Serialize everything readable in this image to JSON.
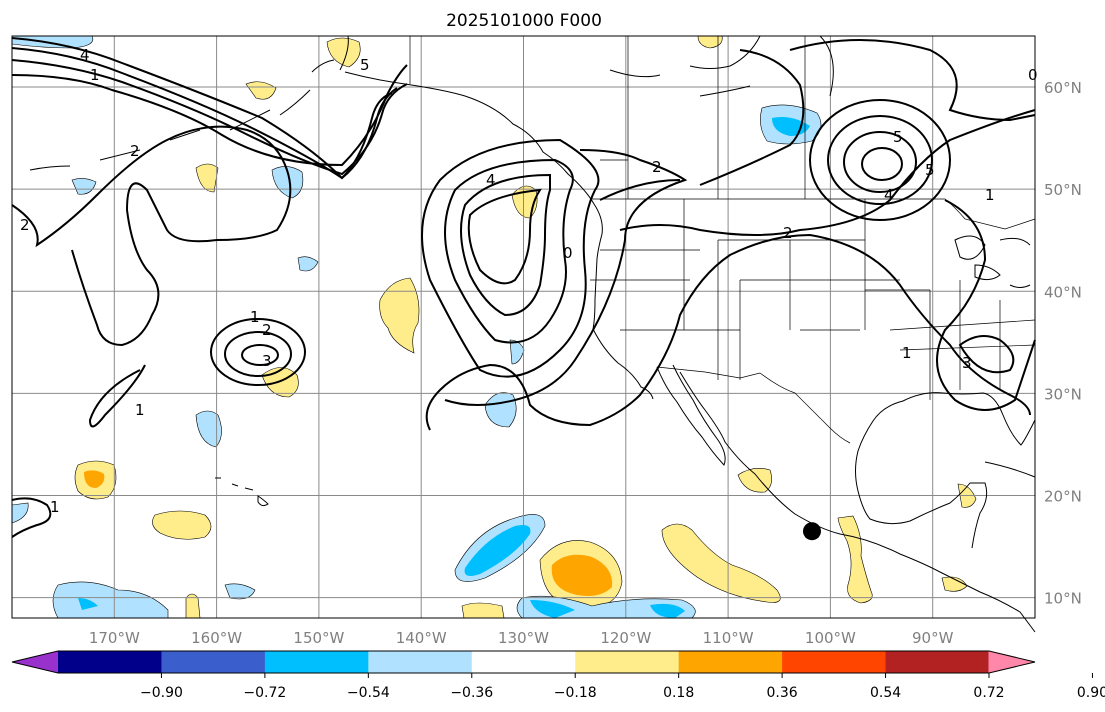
{
  "title": "2025101000 F000",
  "map": {
    "extent_lon": [
      -180,
      -80
    ],
    "extent_lat": [
      8,
      65
    ],
    "lon_ticks": [
      {
        "value": -170,
        "label": "170°W"
      },
      {
        "value": -160,
        "label": "160°W"
      },
      {
        "value": -150,
        "label": "150°W"
      },
      {
        "value": -140,
        "label": "140°W"
      },
      {
        "value": -130,
        "label": "130°W"
      },
      {
        "value": -120,
        "label": "120°W"
      },
      {
        "value": -110,
        "label": "110°W"
      },
      {
        "value": -100,
        "label": "100°W"
      },
      {
        "value": -90,
        "label": "90°W"
      }
    ],
    "lat_ticks": [
      {
        "value": 60,
        "label": "60°N"
      },
      {
        "value": 50,
        "label": "50°N"
      },
      {
        "value": 40,
        "label": "40°N"
      },
      {
        "value": 30,
        "label": "30°N"
      },
      {
        "value": 20,
        "label": "20°N"
      },
      {
        "value": 10,
        "label": "10°N"
      }
    ],
    "contour_labels": [
      "1",
      "2",
      "4",
      "5",
      "2",
      "1",
      "2",
      "3",
      "1",
      "4",
      "0",
      "2",
      "2",
      "5",
      "5",
      "4",
      "1",
      "3",
      "1",
      "0",
      "1"
    ],
    "marker": {
      "lon": -101.8,
      "lat": 16.5
    }
  },
  "colorbar": {
    "levels": [
      "−0.90",
      "−0.72",
      "−0.54",
      "−0.36",
      "−0.18",
      "0.18",
      "0.36",
      "0.54",
      "0.72",
      "0.90"
    ],
    "colors": [
      "#9932cc",
      "#00008b",
      "#3a5fcd",
      "#00bfff",
      "#b0e2ff",
      "#ffffff",
      "#ffec8b",
      "#ffa500",
      "#ff4500",
      "#b22222",
      "#ff88aa"
    ]
  }
}
